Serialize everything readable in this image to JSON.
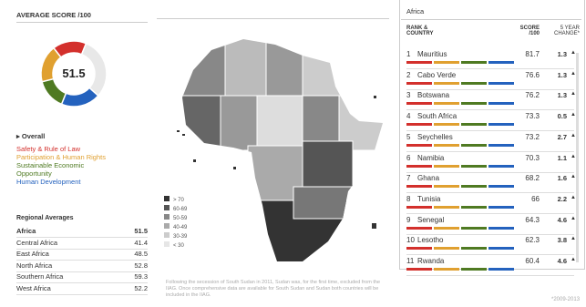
{
  "left": {
    "title": "AVERAGE SCORE /100",
    "score": 51.5,
    "overall": "Overall",
    "categories": [
      {
        "label": "Safety & Rule of Law",
        "color": "#d3302c"
      },
      {
        "label": "Participation & Human Rights",
        "color": "#e0a030"
      },
      {
        "label": "Sustainable Economic Opportunity",
        "color": "#4f7a22"
      },
      {
        "label": "Human Development",
        "color": "#2462be"
      }
    ],
    "regional_title": "Regional Averages",
    "regional": [
      [
        "Africa",
        51.5
      ],
      [
        "Central Africa",
        41.4
      ],
      [
        "East Africa",
        48.5
      ],
      [
        "North Africa",
        52.8
      ],
      [
        "Southern Africa",
        59.3
      ],
      [
        "West Africa",
        52.2
      ]
    ]
  },
  "map": {
    "legend": [
      "> 70",
      "60-69",
      "50-59",
      "40-49",
      "30-39",
      "< 30"
    ],
    "note": "Following the secession of South Sudan in 2011, Sudan was, for the first time, excluded from the IIAG. Once comprehensive data are available for South Sudan and Sudan both countries will be included in the IIAG."
  },
  "ranking": {
    "region": "Africa",
    "headers": [
      "RANK & COUNTRY",
      "SCORE /100",
      "5 YEAR CHANGE*"
    ],
    "rows": [
      [
        1,
        "Mauritius",
        81.7,
        1.3
      ],
      [
        2,
        "Cabo Verde",
        76.6,
        1.3
      ],
      [
        3,
        "Botswana",
        76.2,
        1.3
      ],
      [
        4,
        "South Africa",
        73.3,
        0.5
      ],
      [
        5,
        "Seychelles",
        73.2,
        2.7
      ],
      [
        6,
        "Namibia",
        70.3,
        1.1
      ],
      [
        7,
        "Ghana",
        68.2,
        1.6
      ],
      [
        8,
        "Tunisia",
        66.0,
        2.2
      ],
      [
        9,
        "Senegal",
        64.3,
        4.6
      ],
      [
        10,
        "Lesotho",
        62.3,
        3.8
      ],
      [
        11,
        "Rwanda",
        60.4,
        4.6
      ]
    ],
    "footnote": "*2009-2013"
  }
}
